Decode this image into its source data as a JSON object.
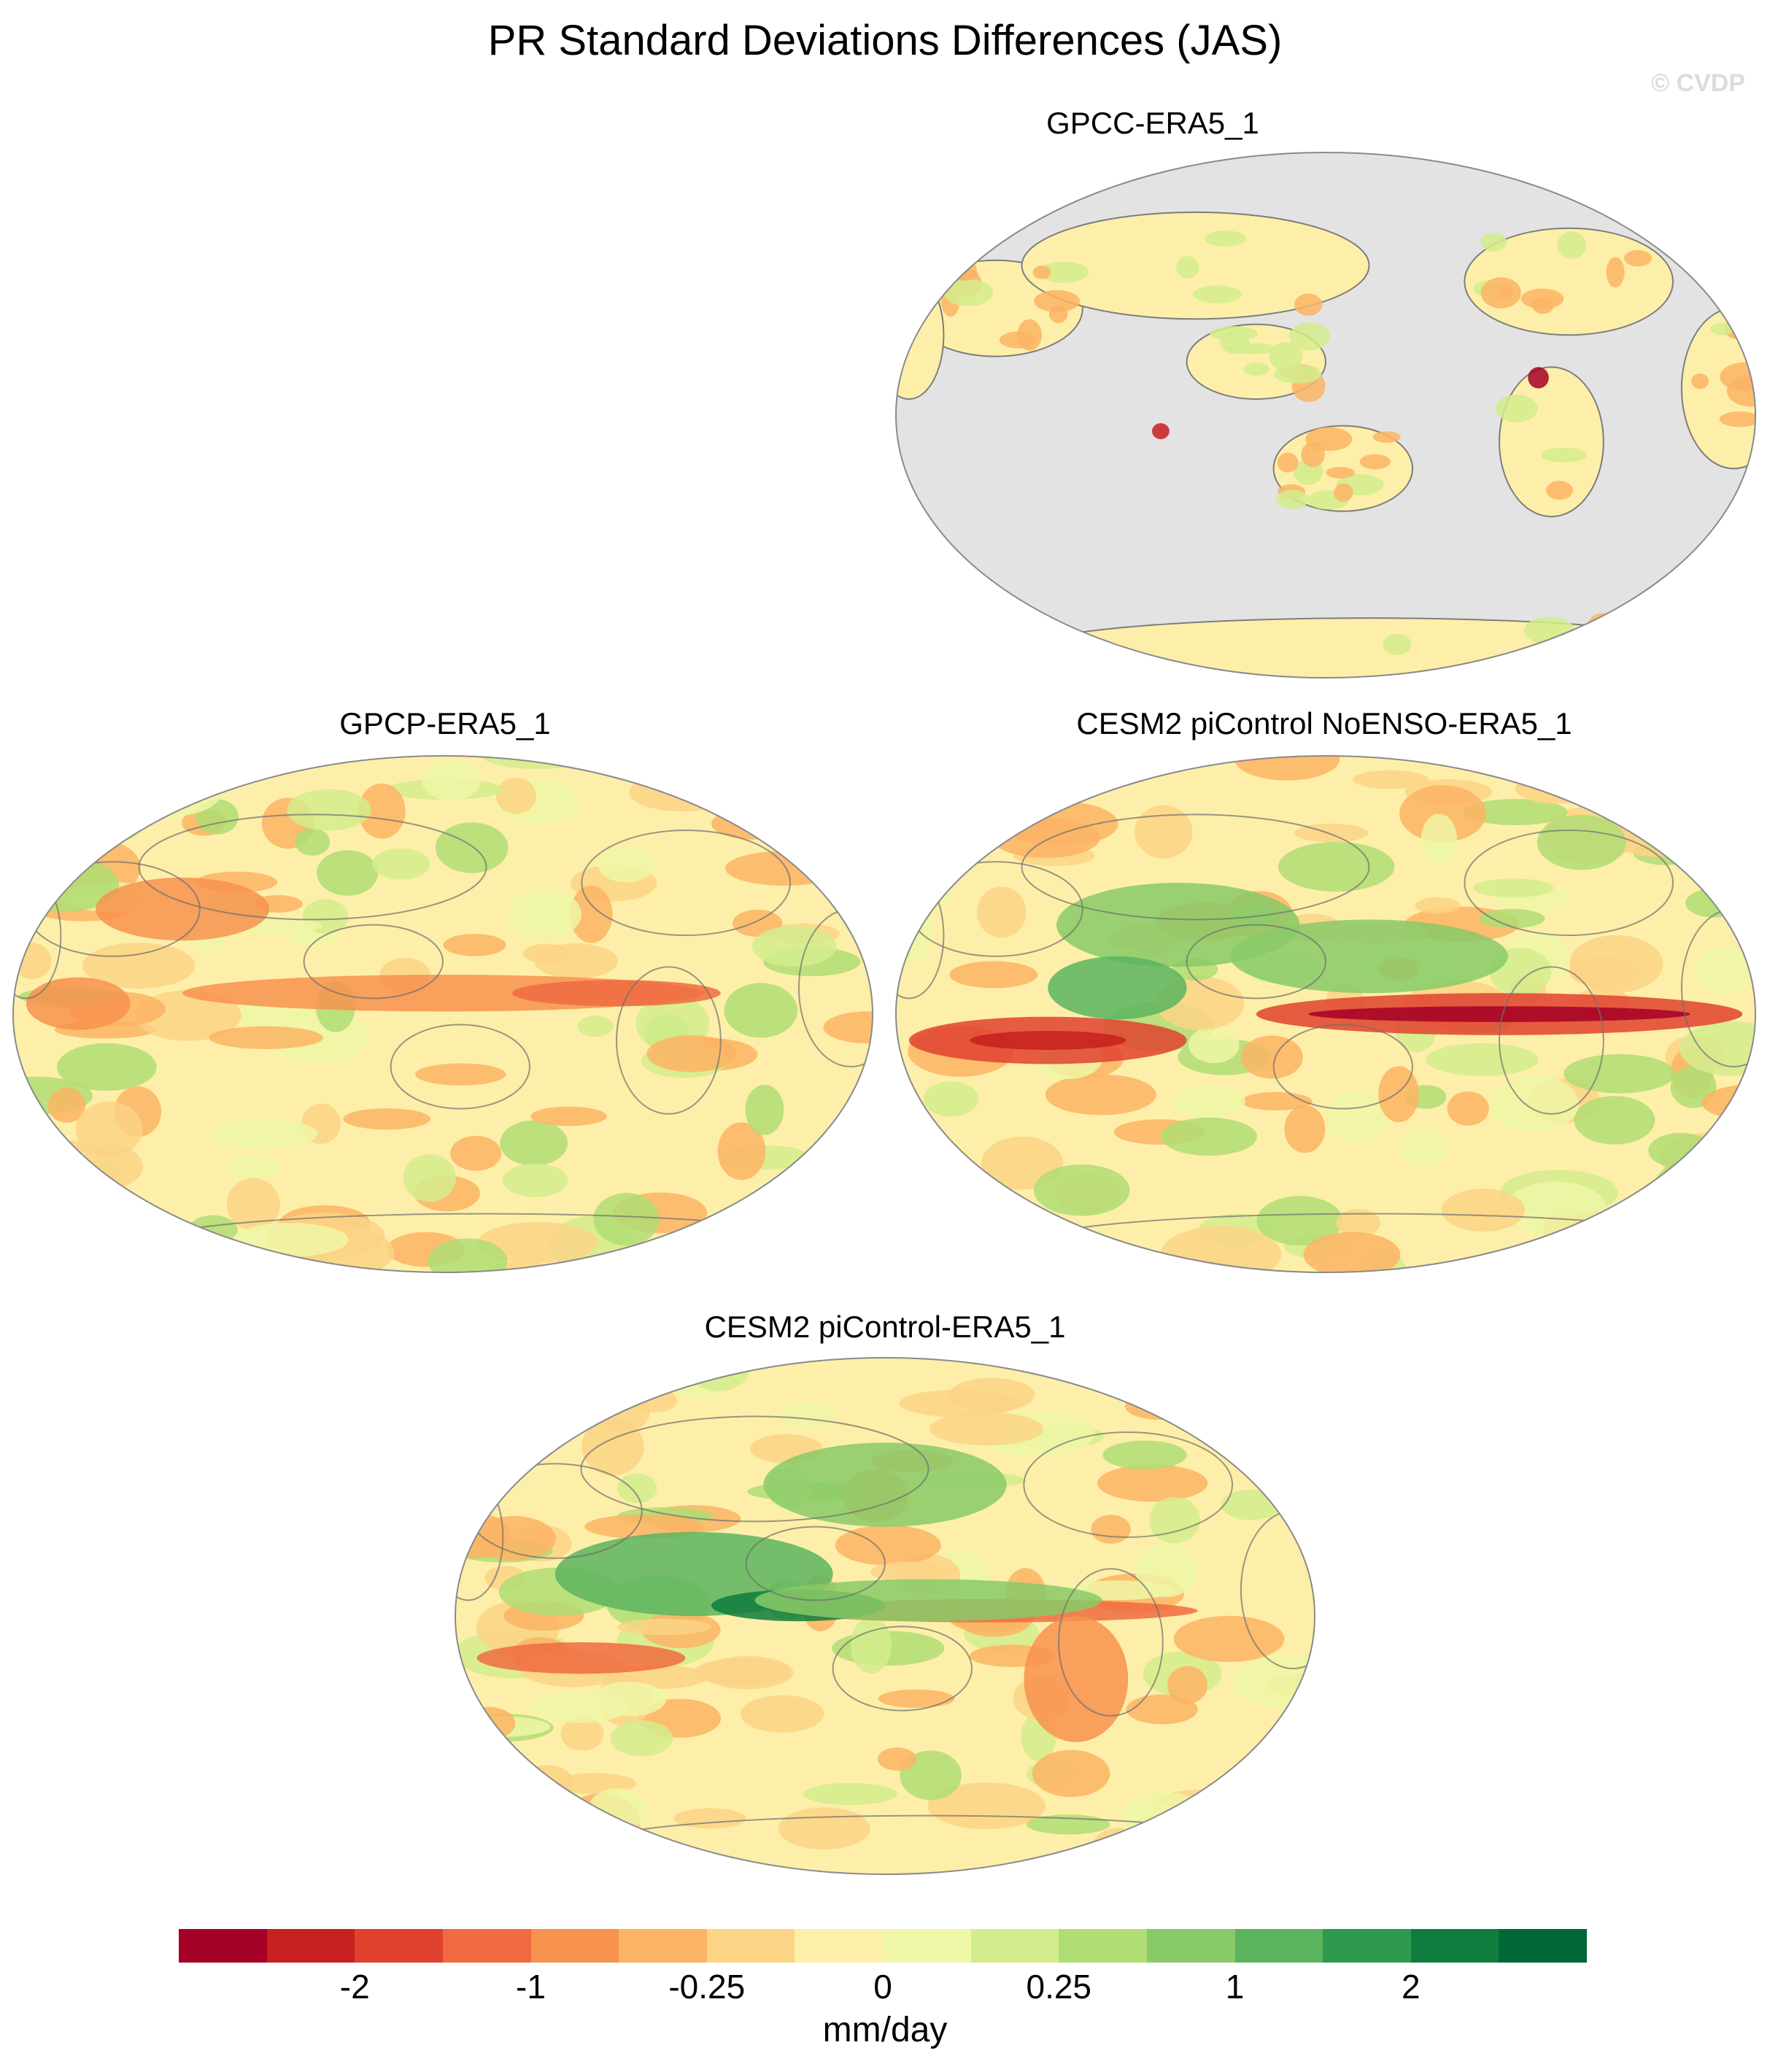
{
  "title": "PR Standard Deviations Differences (JAS)",
  "watermark": "© CVDP",
  "panels": [
    {
      "id": "gpcc",
      "title": "GPCC-ERA5_1",
      "ocean_masked": true
    },
    {
      "id": "gpcp",
      "title": "GPCP-ERA5_1",
      "ocean_masked": false
    },
    {
      "id": "noenso",
      "title": "CESM2 piControl NoENSO-ERA5_1",
      "ocean_masked": false
    },
    {
      "id": "picontrol",
      "title": "CESM2 piControl-ERA5_1",
      "ocean_masked": false
    }
  ],
  "colorbar": {
    "colors": [
      "#a50026",
      "#c7201f",
      "#e0422f",
      "#f06b41",
      "#f7924f",
      "#fbb465",
      "#fcd486",
      "#fdefa9",
      "#eff6a6",
      "#d3ec8d",
      "#b0dd74",
      "#88ca67",
      "#5cb45f",
      "#2e994f",
      "#0f7d3d",
      "#006837"
    ],
    "labels": [
      "-2",
      "-1",
      "-0.25",
      "0",
      "0.25",
      "1",
      "2"
    ],
    "units": "mm/day"
  }
}
